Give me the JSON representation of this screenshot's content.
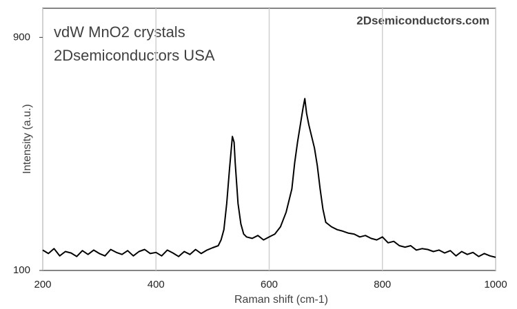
{
  "chart_data": {
    "type": "line",
    "title": "vdW MnO2 crystals",
    "subtitle": "2Dsemiconductors USA",
    "annotation": "2Dsemiconductors.com",
    "x_label": "Raman shift (cm-1)",
    "y_label": "Intensity (a.u.)",
    "xlim": [
      200,
      1000
    ],
    "xticks": [
      200,
      400,
      600,
      800,
      1000
    ],
    "ylim": [
      100,
      1000
    ],
    "yticks": [
      100,
      900
    ],
    "grid": true,
    "series": [
      {
        "name": "MnO2",
        "color": "#000000",
        "x": [
          200,
          210,
          220,
          230,
          240,
          250,
          260,
          270,
          280,
          290,
          300,
          310,
          320,
          330,
          340,
          350,
          360,
          370,
          380,
          390,
          400,
          410,
          420,
          430,
          440,
          450,
          460,
          470,
          480,
          490,
          500,
          510,
          515,
          520,
          525,
          530,
          535,
          538,
          540,
          545,
          550,
          555,
          560,
          570,
          580,
          590,
          600,
          610,
          620,
          630,
          640,
          645,
          650,
          655,
          660,
          663,
          666,
          670,
          675,
          680,
          685,
          690,
          695,
          700,
          710,
          720,
          730,
          740,
          750,
          760,
          770,
          780,
          790,
          800,
          810,
          820,
          830,
          840,
          850,
          860,
          870,
          880,
          890,
          900,
          910,
          920,
          930,
          940,
          950,
          960,
          970,
          980,
          990,
          1000
        ],
        "values": [
          170,
          158,
          175,
          150,
          165,
          160,
          148,
          168,
          155,
          170,
          158,
          150,
          172,
          162,
          155,
          168,
          150,
          165,
          172,
          158,
          162,
          150,
          170,
          160,
          148,
          165,
          155,
          172,
          158,
          170,
          178,
          185,
          205,
          240,
          330,
          450,
          560,
          540,
          470,
          330,
          260,
          225,
          215,
          210,
          220,
          205,
          215,
          225,
          250,
          300,
          380,
          470,
          540,
          600,
          660,
          690,
          640,
          600,
          560,
          520,
          460,
          380,
          310,
          265,
          250,
          240,
          235,
          228,
          225,
          215,
          220,
          210,
          205,
          215,
          195,
          200,
          185,
          180,
          185,
          170,
          175,
          172,
          165,
          170,
          160,
          168,
          150,
          165,
          155,
          162,
          148,
          158,
          150,
          145
        ]
      }
    ]
  }
}
